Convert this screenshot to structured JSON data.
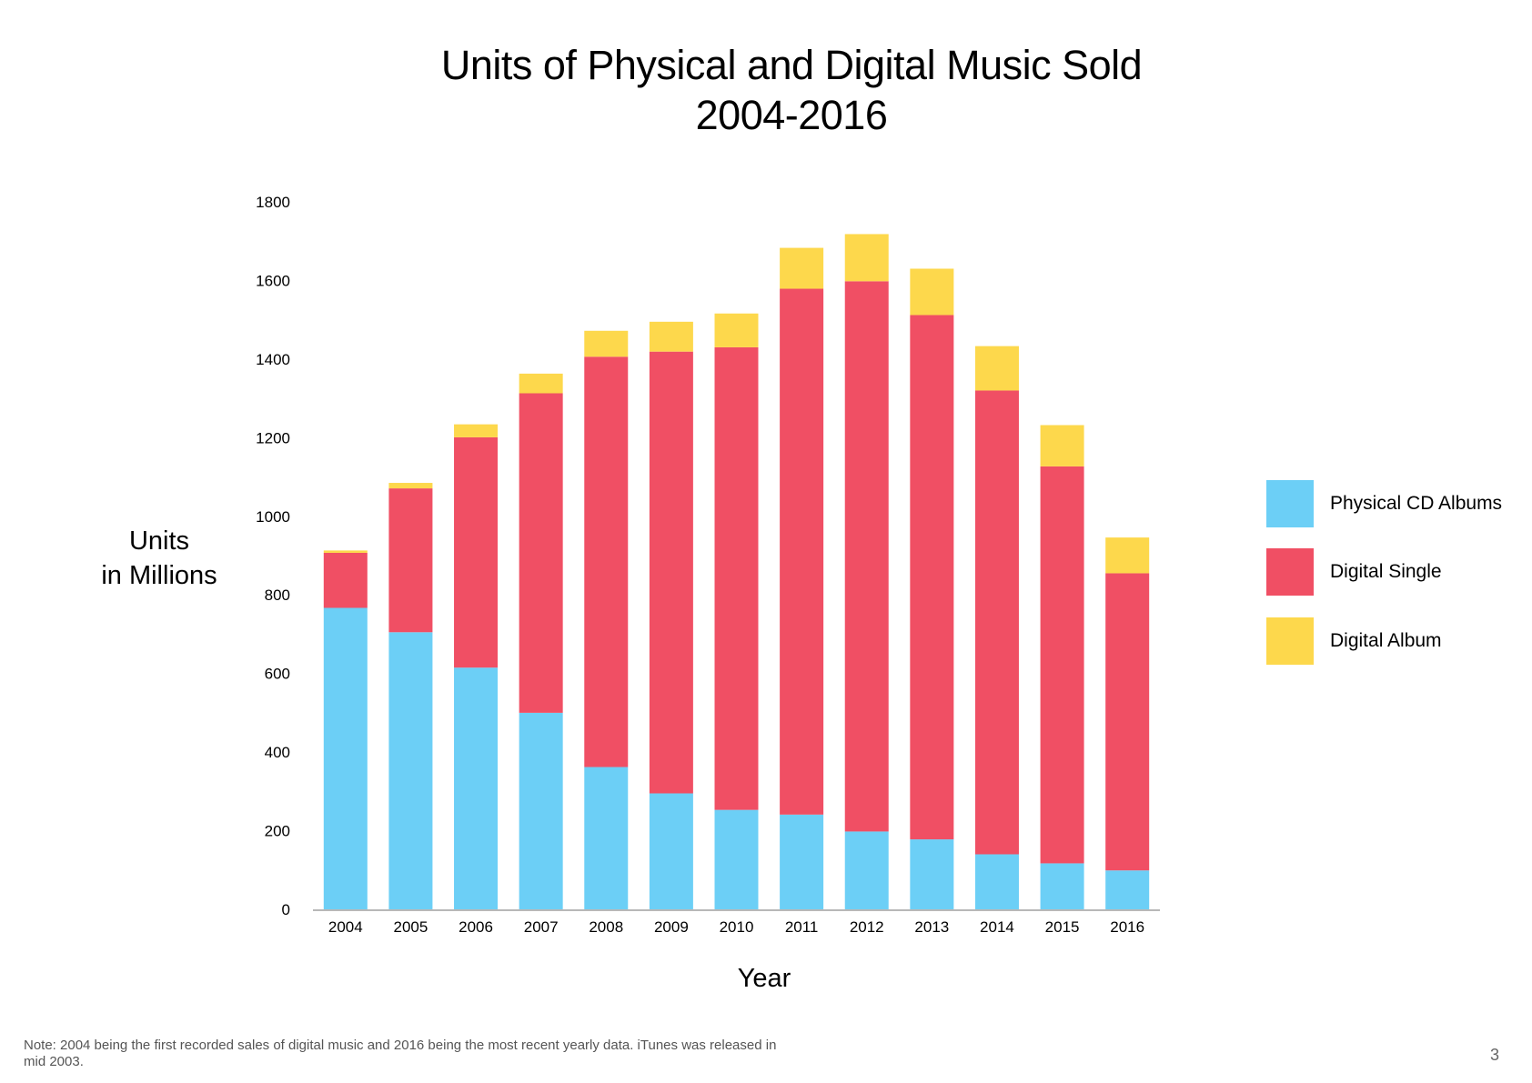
{
  "title": {
    "line1": "Units of Physical and Digital Music Sold",
    "line2": "2004-2016"
  },
  "chart_data": {
    "type": "bar",
    "stacked": true,
    "title": "Units of Physical and Digital Music Sold 2004-2016",
    "xlabel": "Year",
    "ylabel": "Units in Millions",
    "ylabel_lines": [
      "Units",
      "in Millions"
    ],
    "ylim": [
      0,
      1800
    ],
    "yticks": [
      0,
      200,
      400,
      600,
      800,
      1000,
      1200,
      1400,
      1600,
      1800
    ],
    "grid": false,
    "legend_position": "right",
    "categories": [
      "2004",
      "2005",
      "2006",
      "2007",
      "2008",
      "2009",
      "2010",
      "2011",
      "2012",
      "2013",
      "2014",
      "2015",
      "2016"
    ],
    "series": [
      {
        "name": "Physical CD Albums",
        "color": "#6ccff6",
        "values": [
          767,
          705,
          615,
          500,
          362,
          295,
          253,
          241,
          198,
          178,
          140,
          117,
          99
        ]
      },
      {
        "name": "Digital Single",
        "color": "#f04f64",
        "values": [
          140,
          366,
          586,
          813,
          1044,
          1124,
          1177,
          1338,
          1400,
          1334,
          1180,
          1010,
          756
        ]
      },
      {
        "name": "Digital Album",
        "color": "#fdd84c",
        "values": [
          6,
          14,
          33,
          50,
          66,
          76,
          86,
          104,
          120,
          118,
          113,
          105,
          91
        ]
      }
    ]
  },
  "note": "Note: 2004 being the first recorded sales of digital music and 2016 being the most recent yearly data. iTunes was released in mid 2003.",
  "page_number": "3"
}
